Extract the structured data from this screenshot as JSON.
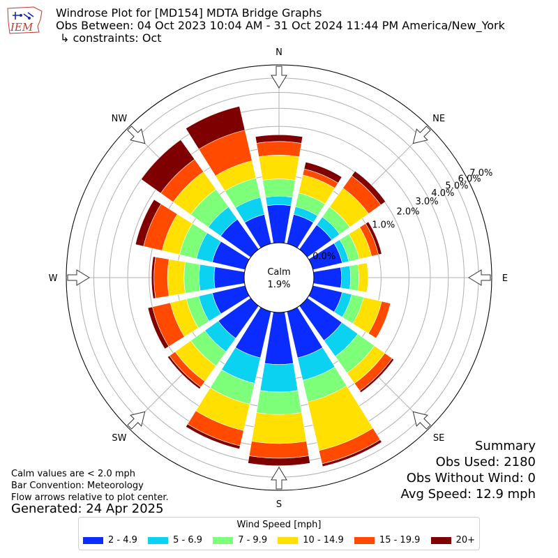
{
  "header": {
    "logo_text": "IEM",
    "title": "Windrose Plot for [MD154] MDTA Bridge Graphs",
    "obs_between": "Obs Between: 04 Oct 2023 10:04 AM - 31 Oct 2024 11:44 PM America/New_York",
    "constraints": "↳ constraints: Oct"
  },
  "notes": {
    "calm_values": "Calm values are < 2.0 mph",
    "bar_convention": "Bar Convention: Meteorology",
    "flow_arrows": "Flow arrows relative to plot center.",
    "generated": "Generated: 24 Apr 2025"
  },
  "summary": {
    "title": "Summary",
    "obs_used": "Obs Used: 2180",
    "obs_without_wind": "Obs Without Wind: 0",
    "avg_speed": "Avg Speed: 12.9 mph"
  },
  "legend": {
    "title": "Wind Speed [mph]",
    "items": [
      {
        "label": "2 - 4.9",
        "color": "#0a2cff"
      },
      {
        "label": "5 - 6.9",
        "color": "#0bd2f1"
      },
      {
        "label": "7 - 9.9",
        "color": "#7dff7a"
      },
      {
        "label": "10 - 14.9",
        "color": "#ffe000"
      },
      {
        "label": "15 - 19.9",
        "color": "#ff4a00"
      },
      {
        "label": "20+",
        "color": "#7f0000"
      }
    ]
  },
  "chart_data": {
    "type": "windrose",
    "calm_label": "Calm",
    "calm_percent": "1.9%",
    "radial_ticks": [
      "0.0%",
      "1.0%",
      "2.0%",
      "3.0%",
      "4.0%",
      "5.0%",
      "6.0%",
      "7.0%"
    ],
    "radial_max": 7.0,
    "compass_labels": [
      "N",
      "NE",
      "E",
      "SE",
      "S",
      "SW",
      "W",
      "NW"
    ],
    "bar_convention": "meteorology",
    "directions": [
      "N",
      "NNE",
      "NE",
      "ENE",
      "E",
      "ESE",
      "SE",
      "SSE",
      "S",
      "SSW",
      "SW",
      "WSW",
      "W",
      "WNW",
      "NW",
      "NNW"
    ],
    "speed_bins": [
      "2 - 4.9",
      "5 - 6.9",
      "7 - 9.9",
      "10 - 14.9",
      "15 - 19.9",
      "20+"
    ],
    "cumulative_percent": [
      [
        0.32,
        0.48,
        0.9,
        1.7,
        2.27,
        2.58
      ],
      [
        0.2,
        0.32,
        0.6,
        1.1,
        1.3,
        1.55
      ],
      [
        0.2,
        0.35,
        0.6,
        1.25,
        1.8,
        2.04
      ],
      [
        0.2,
        0.3,
        0.5,
        0.8,
        1.0,
        1.1
      ],
      [
        0.17,
        0.3,
        0.45,
        0.65,
        0.65,
        0.65
      ],
      [
        0.2,
        0.35,
        0.6,
        1.1,
        1.4,
        1.4
      ],
      [
        0.4,
        0.85,
        1.5,
        2.0,
        2.4,
        2.5
      ],
      [
        0.5,
        1.1,
        1.9,
        4.5,
        5.4,
        5.6
      ],
      [
        0.6,
        1.4,
        2.3,
        3.8,
        4.7,
        5.2
      ],
      [
        0.5,
        1.2,
        2.0,
        3.3,
        4.2,
        4.4
      ],
      [
        0.35,
        0.7,
        1.2,
        1.9,
        2.2,
        2.3
      ],
      [
        0.25,
        0.5,
        0.8,
        1.3,
        2.0,
        2.2
      ],
      [
        0.2,
        0.45,
        0.8,
        1.3,
        1.8,
        1.9
      ],
      [
        0.25,
        0.55,
        1.0,
        1.6,
        2.4,
        2.8
      ],
      [
        0.3,
        0.6,
        1.2,
        2.0,
        2.7,
        4.0
      ],
      [
        0.2,
        0.5,
        1.0,
        1.6,
        3.0,
        4.4
      ]
    ]
  }
}
